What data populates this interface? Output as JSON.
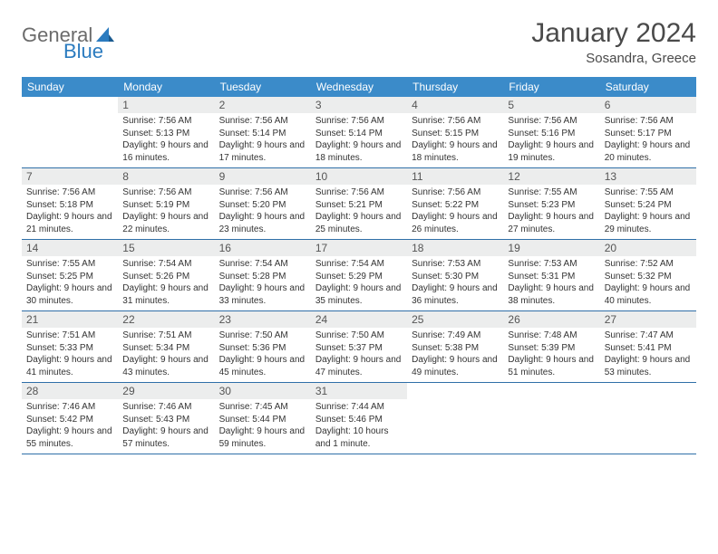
{
  "logo": {
    "general": "General",
    "blue": "Blue"
  },
  "title": "January 2024",
  "location": "Sosandra, Greece",
  "colors": {
    "header_bg": "#3b8bc9",
    "header_text": "#ffffff",
    "daynum_bg": "#eceded",
    "border": "#2f6fa8",
    "title_color": "#4a4a4a",
    "logo_gray": "#6b6b6b",
    "logo_blue": "#2b7bbf"
  },
  "dayHeaders": [
    "Sunday",
    "Monday",
    "Tuesday",
    "Wednesday",
    "Thursday",
    "Friday",
    "Saturday"
  ],
  "weeks": [
    [
      {
        "n": "",
        "sr": "",
        "ss": "",
        "dl": ""
      },
      {
        "n": "1",
        "sr": "Sunrise: 7:56 AM",
        "ss": "Sunset: 5:13 PM",
        "dl": "Daylight: 9 hours and 16 minutes."
      },
      {
        "n": "2",
        "sr": "Sunrise: 7:56 AM",
        "ss": "Sunset: 5:14 PM",
        "dl": "Daylight: 9 hours and 17 minutes."
      },
      {
        "n": "3",
        "sr": "Sunrise: 7:56 AM",
        "ss": "Sunset: 5:14 PM",
        "dl": "Daylight: 9 hours and 18 minutes."
      },
      {
        "n": "4",
        "sr": "Sunrise: 7:56 AM",
        "ss": "Sunset: 5:15 PM",
        "dl": "Daylight: 9 hours and 18 minutes."
      },
      {
        "n": "5",
        "sr": "Sunrise: 7:56 AM",
        "ss": "Sunset: 5:16 PM",
        "dl": "Daylight: 9 hours and 19 minutes."
      },
      {
        "n": "6",
        "sr": "Sunrise: 7:56 AM",
        "ss": "Sunset: 5:17 PM",
        "dl": "Daylight: 9 hours and 20 minutes."
      }
    ],
    [
      {
        "n": "7",
        "sr": "Sunrise: 7:56 AM",
        "ss": "Sunset: 5:18 PM",
        "dl": "Daylight: 9 hours and 21 minutes."
      },
      {
        "n": "8",
        "sr": "Sunrise: 7:56 AM",
        "ss": "Sunset: 5:19 PM",
        "dl": "Daylight: 9 hours and 22 minutes."
      },
      {
        "n": "9",
        "sr": "Sunrise: 7:56 AM",
        "ss": "Sunset: 5:20 PM",
        "dl": "Daylight: 9 hours and 23 minutes."
      },
      {
        "n": "10",
        "sr": "Sunrise: 7:56 AM",
        "ss": "Sunset: 5:21 PM",
        "dl": "Daylight: 9 hours and 25 minutes."
      },
      {
        "n": "11",
        "sr": "Sunrise: 7:56 AM",
        "ss": "Sunset: 5:22 PM",
        "dl": "Daylight: 9 hours and 26 minutes."
      },
      {
        "n": "12",
        "sr": "Sunrise: 7:55 AM",
        "ss": "Sunset: 5:23 PM",
        "dl": "Daylight: 9 hours and 27 minutes."
      },
      {
        "n": "13",
        "sr": "Sunrise: 7:55 AM",
        "ss": "Sunset: 5:24 PM",
        "dl": "Daylight: 9 hours and 29 minutes."
      }
    ],
    [
      {
        "n": "14",
        "sr": "Sunrise: 7:55 AM",
        "ss": "Sunset: 5:25 PM",
        "dl": "Daylight: 9 hours and 30 minutes."
      },
      {
        "n": "15",
        "sr": "Sunrise: 7:54 AM",
        "ss": "Sunset: 5:26 PM",
        "dl": "Daylight: 9 hours and 31 minutes."
      },
      {
        "n": "16",
        "sr": "Sunrise: 7:54 AM",
        "ss": "Sunset: 5:28 PM",
        "dl": "Daylight: 9 hours and 33 minutes."
      },
      {
        "n": "17",
        "sr": "Sunrise: 7:54 AM",
        "ss": "Sunset: 5:29 PM",
        "dl": "Daylight: 9 hours and 35 minutes."
      },
      {
        "n": "18",
        "sr": "Sunrise: 7:53 AM",
        "ss": "Sunset: 5:30 PM",
        "dl": "Daylight: 9 hours and 36 minutes."
      },
      {
        "n": "19",
        "sr": "Sunrise: 7:53 AM",
        "ss": "Sunset: 5:31 PM",
        "dl": "Daylight: 9 hours and 38 minutes."
      },
      {
        "n": "20",
        "sr": "Sunrise: 7:52 AM",
        "ss": "Sunset: 5:32 PM",
        "dl": "Daylight: 9 hours and 40 minutes."
      }
    ],
    [
      {
        "n": "21",
        "sr": "Sunrise: 7:51 AM",
        "ss": "Sunset: 5:33 PM",
        "dl": "Daylight: 9 hours and 41 minutes."
      },
      {
        "n": "22",
        "sr": "Sunrise: 7:51 AM",
        "ss": "Sunset: 5:34 PM",
        "dl": "Daylight: 9 hours and 43 minutes."
      },
      {
        "n": "23",
        "sr": "Sunrise: 7:50 AM",
        "ss": "Sunset: 5:36 PM",
        "dl": "Daylight: 9 hours and 45 minutes."
      },
      {
        "n": "24",
        "sr": "Sunrise: 7:50 AM",
        "ss": "Sunset: 5:37 PM",
        "dl": "Daylight: 9 hours and 47 minutes."
      },
      {
        "n": "25",
        "sr": "Sunrise: 7:49 AM",
        "ss": "Sunset: 5:38 PM",
        "dl": "Daylight: 9 hours and 49 minutes."
      },
      {
        "n": "26",
        "sr": "Sunrise: 7:48 AM",
        "ss": "Sunset: 5:39 PM",
        "dl": "Daylight: 9 hours and 51 minutes."
      },
      {
        "n": "27",
        "sr": "Sunrise: 7:47 AM",
        "ss": "Sunset: 5:41 PM",
        "dl": "Daylight: 9 hours and 53 minutes."
      }
    ],
    [
      {
        "n": "28",
        "sr": "Sunrise: 7:46 AM",
        "ss": "Sunset: 5:42 PM",
        "dl": "Daylight: 9 hours and 55 minutes."
      },
      {
        "n": "29",
        "sr": "Sunrise: 7:46 AM",
        "ss": "Sunset: 5:43 PM",
        "dl": "Daylight: 9 hours and 57 minutes."
      },
      {
        "n": "30",
        "sr": "Sunrise: 7:45 AM",
        "ss": "Sunset: 5:44 PM",
        "dl": "Daylight: 9 hours and 59 minutes."
      },
      {
        "n": "31",
        "sr": "Sunrise: 7:44 AM",
        "ss": "Sunset: 5:46 PM",
        "dl": "Daylight: 10 hours and 1 minute."
      },
      {
        "n": "",
        "sr": "",
        "ss": "",
        "dl": ""
      },
      {
        "n": "",
        "sr": "",
        "ss": "",
        "dl": ""
      },
      {
        "n": "",
        "sr": "",
        "ss": "",
        "dl": ""
      }
    ]
  ]
}
